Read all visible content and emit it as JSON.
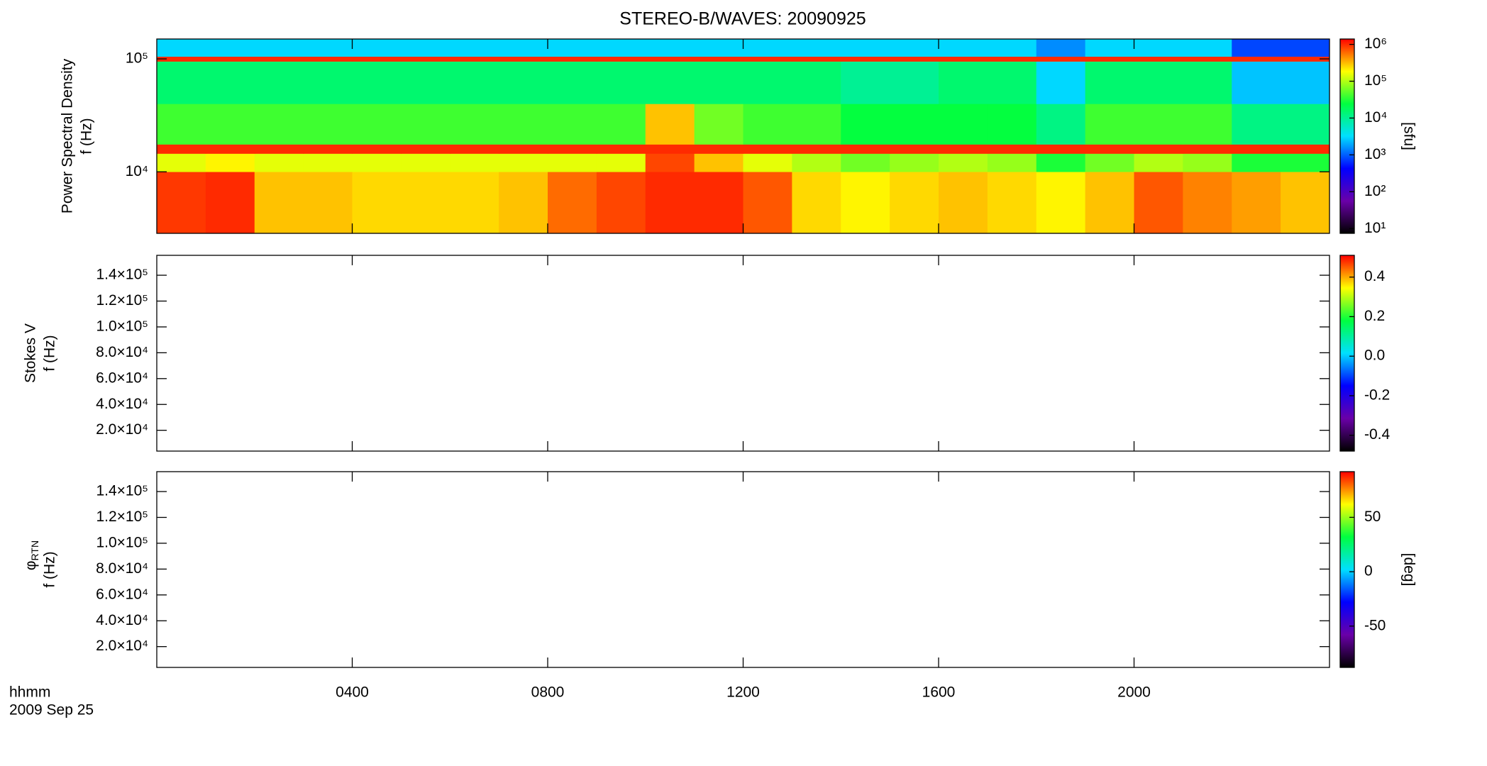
{
  "chart_data": [
    {
      "type": "heatmap",
      "title": "STEREO-B/WAVES: 20090925",
      "ylabel": [
        "Power Spectral Density",
        "f (Hz)"
      ],
      "xlim": [
        0,
        24
      ],
      "xticks": [
        4,
        8,
        12,
        16,
        20
      ],
      "ylim": [
        2850,
        150000
      ],
      "ylog": true,
      "yticks": [
        {
          "value": 10000,
          "label": "10⁴"
        },
        {
          "value": 100000,
          "label": "10⁵"
        }
      ],
      "x_edges": [
        0,
        1,
        2,
        3,
        4,
        5,
        6,
        7,
        8,
        9,
        10,
        11,
        12,
        13,
        14,
        15,
        16,
        17,
        18,
        19,
        20,
        21,
        22,
        23,
        24
      ],
      "y_edges": [
        2850,
        10000,
        14500,
        17500,
        40000,
        95000,
        105000,
        150000
      ],
      "z": [
        [
          900000,
          1000000,
          300000,
          300000,
          250000,
          250000,
          250000,
          300000,
          600000,
          800000,
          1000000,
          1000000,
          700000,
          250000,
          200000,
          250000,
          300000,
          250000,
          200000,
          300000,
          700000,
          500000,
          400000,
          300000
        ],
        [
          150000,
          200000,
          150000,
          150000,
          150000,
          150000,
          150000,
          150000,
          150000,
          150000,
          800000,
          300000,
          150000,
          100000,
          60000,
          80000,
          100000,
          80000,
          30000,
          60000,
          100000,
          80000,
          30000,
          30000
        ],
        [
          1000000,
          1000000,
          1000000,
          1000000,
          1000000,
          1000000,
          1000000,
          1000000,
          1000000,
          1000000,
          1000000,
          1000000,
          1000000,
          1000000,
          1000000,
          1000000,
          1000000,
          1000000,
          1000000,
          1000000,
          1000000,
          1000000,
          1000000,
          1000000
        ],
        [
          40000,
          40000,
          40000,
          40000,
          40000,
          40000,
          40000,
          40000,
          40000,
          40000,
          300000,
          60000,
          40000,
          40000,
          25000,
          25000,
          25000,
          25000,
          12000,
          40000,
          40000,
          40000,
          12000,
          12000
        ],
        [
          15000,
          15000,
          15000,
          15000,
          15000,
          15000,
          15000,
          15000,
          15000,
          15000,
          15000,
          15000,
          15000,
          15000,
          10000,
          10000,
          15000,
          15000,
          3000,
          15000,
          15000,
          15000,
          2500,
          2500
        ],
        [
          1000000,
          1000000,
          1000000,
          1000000,
          1000000,
          1000000,
          1000000,
          1000000,
          1000000,
          1000000,
          1000000,
          1000000,
          1000000,
          1000000,
          1000000,
          1000000,
          1000000,
          1000000,
          1000000,
          1000000,
          1000000,
          1000000,
          1000000,
          1000000
        ],
        [
          3000,
          3000,
          3000,
          3000,
          3000,
          3000,
          3000,
          3000,
          3000,
          3000,
          3000,
          3000,
          3000,
          3000,
          3000,
          3000,
          3000,
          3000,
          1500,
          3000,
          3000,
          3000,
          800,
          800
        ]
      ],
      "colorbar": {
        "lim": [
          7.4,
          1400000
        ],
        "log": true,
        "label": "[sfu]",
        "ticks": [
          {
            "value": 10,
            "label": "10¹"
          },
          {
            "value": 100,
            "label": "10²"
          },
          {
            "value": 1000,
            "label": "10³"
          },
          {
            "value": 10000,
            "label": "10⁴"
          },
          {
            "value": 100000,
            "label": "10⁵"
          },
          {
            "value": 1000000,
            "label": "10⁶"
          }
        ],
        "colors": [
          "#000000",
          "#6a00a8",
          "#0000ff",
          "#00e0ff",
          "#00ff40",
          "#ffff00",
          "#ff0000"
        ]
      }
    },
    {
      "type": "heatmap",
      "ylabel": [
        "Stokes V",
        "f (Hz)"
      ],
      "xlim": [
        0,
        24
      ],
      "xticks": [
        4,
        8,
        12,
        16,
        20
      ],
      "ylim": [
        3900,
        155400
      ],
      "yticks": [
        {
          "value": 20000,
          "label": "2.0×10⁴"
        },
        {
          "value": 40000,
          "label": "4.0×10⁴"
        },
        {
          "value": 60000,
          "label": "6.0×10⁴"
        },
        {
          "value": 80000,
          "label": "8.0×10⁴"
        },
        {
          "value": 100000,
          "label": "1.0×10⁵"
        },
        {
          "value": 120000,
          "label": "1.2×10⁵"
        },
        {
          "value": 140000,
          "label": "1.4×10⁵"
        }
      ],
      "colorbar": {
        "lim": [
          -0.48,
          0.51
        ],
        "ticks": [
          -0.4,
          -0.2,
          {
            "value": 0,
            "label": "0.0"
          },
          0.2,
          0.4
        ],
        "colors": [
          "#000000",
          "#6a00a8",
          "#0000ff",
          "#00e0ff",
          "#00ff40",
          "#ffff00",
          "#ff0000"
        ]
      }
    },
    {
      "type": "heatmap",
      "ylabel": [
        {
          "symbol": "φ",
          "subscript": "RTN"
        },
        "f (Hz)"
      ],
      "xlim": [
        0,
        24
      ],
      "xticks": [
        {
          "value": 4,
          "label": "0400"
        },
        {
          "value": 8,
          "label": "0800"
        },
        {
          "value": 12,
          "label": "1200"
        },
        {
          "value": 16,
          "label": "1600"
        },
        {
          "value": 20,
          "label": "2000"
        }
      ],
      "xlabel": "hhmm",
      "date": "2009 Sep 25",
      "ylim": [
        3900,
        155400
      ],
      "yticks": [
        {
          "value": 20000,
          "label": "2.0×10⁴"
        },
        {
          "value": 40000,
          "label": "4.0×10⁴"
        },
        {
          "value": 60000,
          "label": "6.0×10⁴"
        },
        {
          "value": 80000,
          "label": "8.0×10⁴"
        },
        {
          "value": 100000,
          "label": "1.0×10⁵"
        },
        {
          "value": 120000,
          "label": "1.2×10⁵"
        },
        {
          "value": 140000,
          "label": "1.4×10⁵"
        }
      ],
      "colorbar": {
        "lim": [
          -88,
          92
        ],
        "label": "[deg]",
        "ticks": [
          -50,
          0,
          50
        ],
        "colors": [
          "#000000",
          "#6a00a8",
          "#0000ff",
          "#00e0ff",
          "#00ff40",
          "#ffff00",
          "#ff0000"
        ]
      }
    }
  ]
}
